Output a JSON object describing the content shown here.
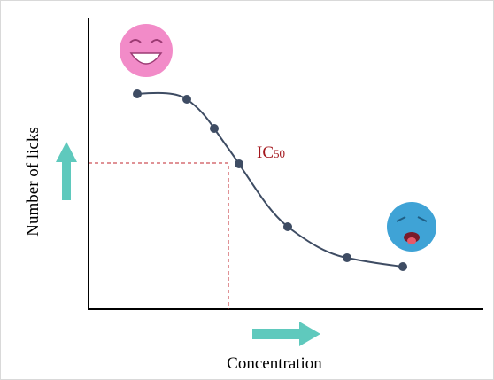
{
  "y_axis_label": "Number of licks",
  "x_axis_label": "Concentration",
  "ic50": {
    "main": "IC",
    "sub": "50"
  }
}
